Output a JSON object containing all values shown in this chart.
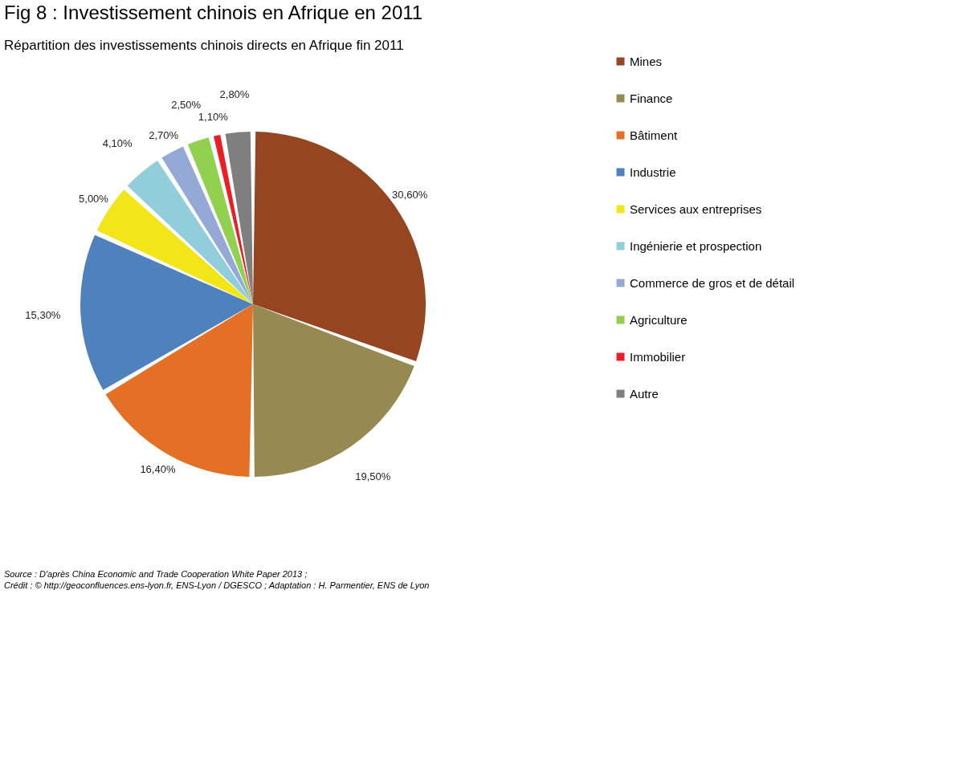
{
  "chart_data": {
    "type": "pie",
    "title": "Fig 8 :  Investissement chinois en Afrique en 2011",
    "subtitle": "Répartition des investissements chinois directs en Afrique fin 2011",
    "categories": [
      "Mines",
      "Finance",
      "Bâtiment",
      "Industrie",
      "Services aux entreprises",
      "Ingénierie et prospection",
      "Commerce de gros et de détail",
      "Agriculture",
      "Immobilier",
      "Autre"
    ],
    "values": [
      30.6,
      19.5,
      16.4,
      15.3,
      5.0,
      4.1,
      2.7,
      2.5,
      1.1,
      2.8
    ],
    "value_labels": [
      "30,60%",
      "19,50%",
      "16,40%",
      "15,30%",
      "5,00%",
      "4,10%",
      "2,70%",
      "2,50%",
      "1,10%",
      "2,80%"
    ],
    "colors": [
      "#954520",
      "#968a52",
      "#e47025",
      "#4f81bd",
      "#f2e61b",
      "#92cddc",
      "#95a9d6",
      "#92d050",
      "#ee1c25",
      "#7f7f7f"
    ],
    "legend": "right",
    "annotations": [
      "Source : D'après China Economic and Trade Cooperation White Paper 2013 ;",
      "Crédit : © http://geoconfluences.ens-lyon.fr, ENS-Lyon / DGESCO ; Adaptation : H. Parmentier, ENS de Lyon"
    ]
  }
}
